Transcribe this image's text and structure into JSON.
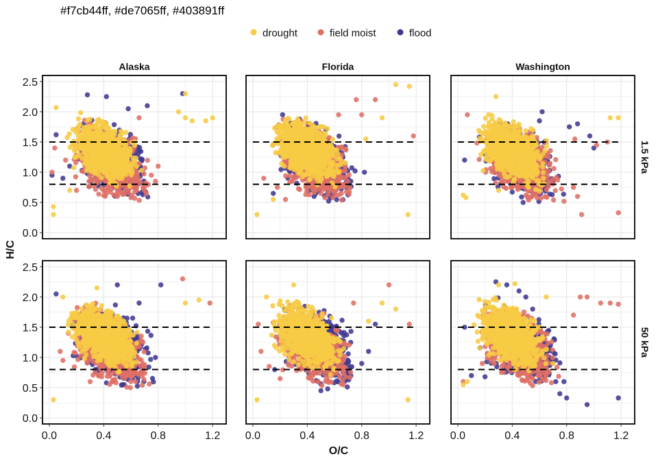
{
  "header_text": "#f7cb44ff, #de7065ff, #403891ff",
  "chart_data": {
    "type": "scatter",
    "title": "",
    "xlabel": "O/C",
    "ylabel": "H/C",
    "xlim": [
      -0.05,
      1.3
    ],
    "ylim": [
      -0.1,
      2.6
    ],
    "x_ticks": [
      0.0,
      0.4,
      0.8,
      1.2
    ],
    "x_tick_labels": [
      "0.0",
      "0.4",
      "0.8",
      "1.2"
    ],
    "y_ticks": [
      0.0,
      0.5,
      1.0,
      1.5,
      2.0,
      2.5
    ],
    "y_tick_labels": [
      "0.0",
      "0.5",
      "1.0",
      "1.5",
      "2.0",
      "2.5"
    ],
    "reference_lines_y": [
      0.8,
      1.5
    ],
    "reference_line_span_x": [
      0.0,
      1.2
    ],
    "columns": [
      "Alaska",
      "Florida",
      "Washington"
    ],
    "rows": [
      "1.5 kPa",
      "50 kPa"
    ],
    "legend": {
      "position": "top",
      "items": [
        {
          "name": "drought",
          "color": "#f7cb44"
        },
        {
          "name": "field moist",
          "color": "#de7065"
        },
        {
          "name": "flood",
          "color": "#403891"
        }
      ]
    },
    "grid": true,
    "panels": [
      {
        "row": "1.5 kPa",
        "col": "Alaska",
        "series": {
          "flood": [
            [
              0.28,
              2.28
            ],
            [
              0.42,
              2.25
            ],
            [
              0.58,
              2.05
            ],
            [
              0.72,
              2.1
            ],
            [
              0.98,
              2.3
            ],
            [
              0.05,
              1.62
            ],
            [
              0.1,
              0.9
            ],
            [
              0.02,
              0.95
            ],
            [
              0.15,
              1.1
            ],
            [
              0.34,
              0.9
            ]
          ],
          "field moist": [
            [
              0.5,
              0.6
            ],
            [
              0.42,
              0.65
            ],
            [
              0.6,
              0.58
            ],
            [
              0.7,
              0.7
            ],
            [
              0.78,
              0.85
            ],
            [
              0.2,
              0.7
            ],
            [
              0.12,
              1.2
            ],
            [
              0.04,
              1.4
            ],
            [
              0.02,
              1.0
            ],
            [
              0.3,
              1.75
            ],
            [
              0.75,
              0.95
            ],
            [
              0.8,
              1.1
            ],
            [
              0.66,
              1.9
            ]
          ],
          "drought": [
            [
              0.03,
              0.43
            ],
            [
              0.03,
              0.3
            ],
            [
              0.15,
              0.7
            ],
            [
              1.0,
              1.9
            ],
            [
              1.05,
              1.85
            ],
            [
              1.15,
              1.85
            ],
            [
              1.2,
              1.9
            ],
            [
              1.0,
              2.3
            ],
            [
              0.95,
              2.0
            ],
            [
              0.05,
              2.07
            ]
          ]
        }
      },
      {
        "row": "1.5 kPa",
        "col": "Florida",
        "series": {
          "flood": [
            [
              0.45,
              0.6
            ],
            [
              0.55,
              0.62
            ],
            [
              0.65,
              0.72
            ],
            [
              0.72,
              0.85
            ],
            [
              0.82,
              1.0
            ],
            [
              0.15,
              0.65
            ]
          ],
          "field moist": [
            [
              0.9,
              2.2
            ],
            [
              0.76,
              2.2
            ],
            [
              0.8,
              1.95
            ],
            [
              0.63,
              1.95
            ],
            [
              0.5,
              0.65
            ],
            [
              0.68,
              0.8
            ],
            [
              0.08,
              0.9
            ],
            [
              0.18,
              0.75
            ],
            [
              0.24,
              0.55
            ],
            [
              1.18,
              1.6
            ]
          ],
          "drought": [
            [
              1.05,
              2.45
            ],
            [
              1.15,
              2.42
            ],
            [
              0.03,
              0.3
            ],
            [
              1.14,
              0.3
            ],
            [
              0.15,
              0.55
            ],
            [
              0.95,
              1.9
            ],
            [
              0.83,
              1.55
            ],
            [
              0.23,
              1.1
            ]
          ]
        }
      },
      {
        "row": "1.5 kPa",
        "col": "Washington",
        "series": {
          "flood": [
            [
              0.82,
              1.75
            ],
            [
              0.88,
              1.8
            ],
            [
              0.97,
              1.6
            ],
            [
              1.0,
              1.4
            ],
            [
              0.6,
              1.85
            ],
            [
              0.62,
              2.0
            ],
            [
              0.48,
              0.5
            ],
            [
              0.7,
              0.85
            ],
            [
              0.2,
              1.3
            ],
            [
              0.05,
              1.2
            ]
          ],
          "field moist": [
            [
              1.18,
              0.33
            ],
            [
              0.91,
              0.3
            ],
            [
              0.88,
              0.6
            ],
            [
              0.78,
              0.52
            ],
            [
              0.85,
              0.75
            ],
            [
              1.02,
              1.45
            ],
            [
              1.1,
              1.5
            ],
            [
              0.86,
              1.55
            ],
            [
              0.07,
              1.95
            ],
            [
              0.65,
              1.5
            ]
          ],
          "drought": [
            [
              0.04,
              0.62
            ],
            [
              0.06,
              0.58
            ],
            [
              0.3,
              0.7
            ],
            [
              0.52,
              0.75
            ],
            [
              1.12,
              1.9
            ],
            [
              1.18,
              1.9
            ],
            [
              0.28,
              2.25
            ]
          ]
        }
      },
      {
        "row": "50 kPa",
        "col": "Alaska",
        "series": {
          "flood": [
            [
              0.05,
              2.05
            ],
            [
              0.5,
              2.2
            ],
            [
              0.66,
              1.9
            ],
            [
              0.82,
              2.2
            ],
            [
              0.42,
              0.58
            ],
            [
              0.55,
              0.55
            ],
            [
              0.78,
              1.0
            ]
          ],
          "field moist": [
            [
              0.98,
              2.3
            ],
            [
              1.18,
              1.9
            ],
            [
              0.08,
              1.1
            ],
            [
              0.1,
              0.95
            ],
            [
              0.3,
              0.6
            ],
            [
              0.6,
              0.6
            ],
            [
              0.14,
              1.4
            ]
          ],
          "drought": [
            [
              0.03,
              0.3
            ],
            [
              0.1,
              2.0
            ],
            [
              0.35,
              2.15
            ],
            [
              1.1,
              1.95
            ],
            [
              1.0,
              1.9
            ],
            [
              0.2,
              1.75
            ]
          ]
        }
      },
      {
        "row": "50 kPa",
        "col": "Florida",
        "series": {
          "flood": [
            [
              0.5,
              0.45
            ],
            [
              0.55,
              0.48
            ],
            [
              0.72,
              0.7
            ],
            [
              0.8,
              0.9
            ],
            [
              0.85,
              1.1
            ],
            [
              0.9,
              1.55
            ],
            [
              0.16,
              0.8
            ],
            [
              0.66,
              0.65
            ]
          ],
          "field moist": [
            [
              1.0,
              2.2
            ],
            [
              0.06,
              1.1
            ],
            [
              0.12,
              0.85
            ],
            [
              0.2,
              0.65
            ],
            [
              0.04,
              1.55
            ],
            [
              1.15,
              1.55
            ],
            [
              0.74,
              1.9
            ]
          ],
          "drought": [
            [
              0.03,
              0.3
            ],
            [
              1.14,
              0.3
            ],
            [
              1.05,
              1.8
            ],
            [
              0.95,
              1.9
            ],
            [
              0.1,
              2.0
            ],
            [
              0.3,
              2.2
            ],
            [
              0.85,
              1.6
            ]
          ]
        }
      },
      {
        "row": "50 kPa",
        "col": "Washington",
        "series": {
          "flood": [
            [
              0.95,
              0.22
            ],
            [
              1.18,
              0.33
            ],
            [
              0.8,
              0.33
            ],
            [
              0.75,
              0.4
            ],
            [
              0.72,
              0.6
            ],
            [
              0.78,
              0.6
            ],
            [
              0.62,
              0.72
            ],
            [
              0.28,
              2.25
            ],
            [
              0.36,
              2.2
            ],
            [
              0.45,
              2.1
            ],
            [
              0.5,
              2.0
            ],
            [
              0.55,
              1.8
            ],
            [
              0.05,
              1.5
            ],
            [
              0.1,
              0.7
            ],
            [
              0.2,
              0.68
            ]
          ],
          "field moist": [
            [
              0.9,
              2.0
            ],
            [
              0.95,
              2.0
            ],
            [
              1.05,
              1.9
            ],
            [
              1.12,
              1.9
            ],
            [
              1.18,
              1.88
            ],
            [
              0.85,
              1.7
            ],
            [
              0.04,
              0.6
            ],
            [
              0.18,
              0.9
            ]
          ],
          "drought": [
            [
              0.04,
              0.55
            ],
            [
              0.07,
              0.6
            ],
            [
              0.3,
              2.2
            ],
            [
              0.42,
              2.22
            ],
            [
              0.7,
              0.9
            ],
            [
              0.65,
              2.0
            ]
          ]
        }
      }
    ]
  }
}
